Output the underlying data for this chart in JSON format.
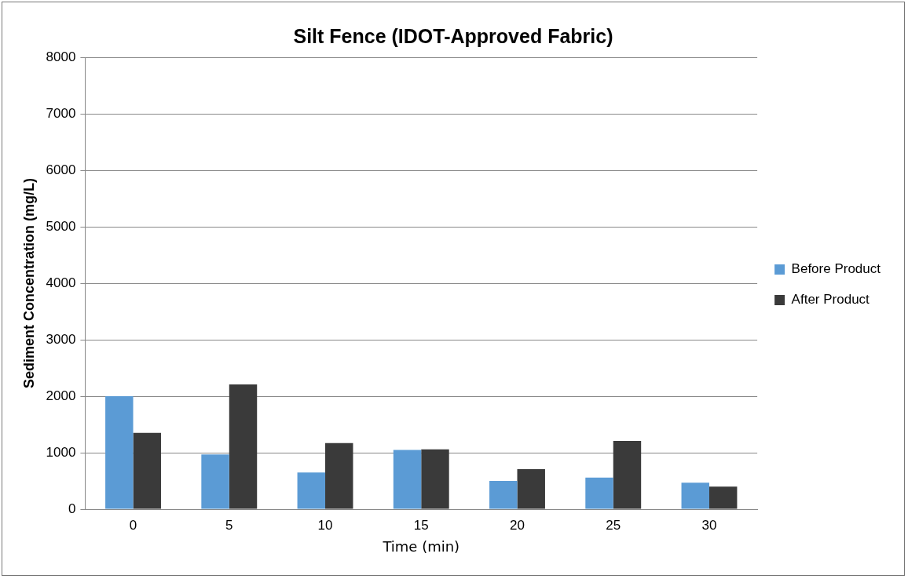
{
  "chart_data": {
    "type": "bar",
    "title": "Silt Fence (IDOT-Approved Fabric)",
    "xlabel": "Time (min)",
    "ylabel": "Sediment Concentration (mg/L)",
    "categories": [
      "0",
      "5",
      "10",
      "15",
      "20",
      "25",
      "30"
    ],
    "series": [
      {
        "name": "Before Product",
        "color": "#5b9bd5",
        "values": [
          2000,
          970,
          650,
          1050,
          500,
          560,
          470
        ]
      },
      {
        "name": "After Product",
        "color": "#3a3a3a",
        "values": [
          1350,
          2210,
          1170,
          1060,
          710,
          1210,
          400
        ]
      }
    ],
    "ylim": [
      0,
      8000
    ],
    "yticks": [
      0,
      1000,
      2000,
      3000,
      4000,
      5000,
      6000,
      7000,
      8000
    ],
    "grid": "y",
    "legend": "right"
  }
}
